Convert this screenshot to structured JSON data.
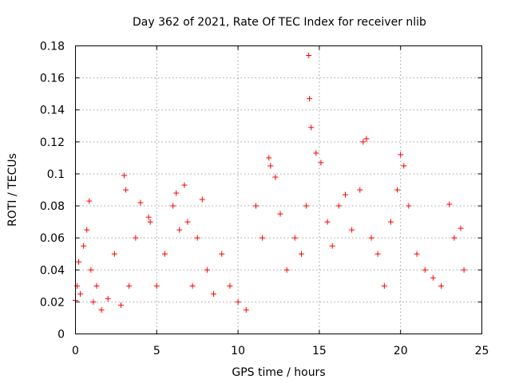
{
  "chart_data": {
    "type": "scatter",
    "title": "Day 362 of 2021, Rate Of TEC Index for receiver nlib",
    "xlabel": "GPS time / hours",
    "ylabel": "ROTI / TECUs",
    "xlim": [
      0,
      25
    ],
    "ylim": [
      0,
      0.18
    ],
    "x_ticks": [
      0,
      5,
      10,
      15,
      20,
      25
    ],
    "x_tick_labels": [
      "0",
      "5",
      "10",
      "15",
      "20",
      "25"
    ],
    "y_ticks": [
      0,
      0.02,
      0.04,
      0.06,
      0.08,
      0.1,
      0.12,
      0.14,
      0.16,
      0.18
    ],
    "y_tick_labels": [
      "0",
      "0.02",
      "0.04",
      "0.06",
      "0.08",
      "0.1",
      "0.12",
      "0.14",
      "0.16",
      "0.18"
    ],
    "grid": true,
    "marker": "+",
    "color": "#ff0000",
    "series": [
      {
        "name": "ROTI",
        "x": [
          0.0,
          0.1,
          0.2,
          0.3,
          0.5,
          0.7,
          0.85,
          0.95,
          1.1,
          1.3,
          1.6,
          2.0,
          2.4,
          2.8,
          3.0,
          3.1,
          3.3,
          3.7,
          4.0,
          4.5,
          4.6,
          5.0,
          5.5,
          6.0,
          6.2,
          6.4,
          6.7,
          6.9,
          7.2,
          7.5,
          7.8,
          8.1,
          8.5,
          9.0,
          9.5,
          10.0,
          10.5,
          11.1,
          11.5,
          11.9,
          12.0,
          12.3,
          12.6,
          13.0,
          13.5,
          13.9,
          14.2,
          14.35,
          14.4,
          14.5,
          14.8,
          15.1,
          15.5,
          15.8,
          16.2,
          16.6,
          17.0,
          17.5,
          17.7,
          17.9,
          18.2,
          18.6,
          19.0,
          19.4,
          19.8,
          20.0,
          20.2,
          20.5,
          21.0,
          21.5,
          22.0,
          22.5,
          23.0,
          23.3,
          23.7,
          23.9
        ],
        "y": [
          0.021,
          0.03,
          0.045,
          0.025,
          0.055,
          0.065,
          0.083,
          0.04,
          0.02,
          0.03,
          0.015,
          0.022,
          0.05,
          0.018,
          0.099,
          0.09,
          0.03,
          0.06,
          0.082,
          0.073,
          0.07,
          0.03,
          0.05,
          0.08,
          0.088,
          0.065,
          0.093,
          0.07,
          0.03,
          0.06,
          0.084,
          0.04,
          0.025,
          0.05,
          0.03,
          0.02,
          0.015,
          0.08,
          0.06,
          0.11,
          0.105,
          0.098,
          0.075,
          0.04,
          0.06,
          0.05,
          0.08,
          0.174,
          0.147,
          0.129,
          0.113,
          0.107,
          0.07,
          0.055,
          0.08,
          0.087,
          0.065,
          0.09,
          0.12,
          0.122,
          0.06,
          0.05,
          0.03,
          0.07,
          0.09,
          0.112,
          0.105,
          0.08,
          0.05,
          0.04,
          0.035,
          0.03,
          0.081,
          0.06,
          0.066,
          0.04
        ]
      }
    ]
  }
}
